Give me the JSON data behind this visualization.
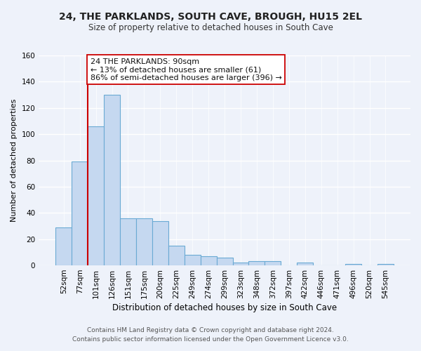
{
  "title": "24, THE PARKLANDS, SOUTH CAVE, BROUGH, HU15 2EL",
  "subtitle": "Size of property relative to detached houses in South Cave",
  "xlabel": "Distribution of detached houses by size in South Cave",
  "ylabel": "Number of detached properties",
  "bar_labels": [
    "52sqm",
    "77sqm",
    "101sqm",
    "126sqm",
    "151sqm",
    "175sqm",
    "200sqm",
    "225sqm",
    "249sqm",
    "274sqm",
    "299sqm",
    "323sqm",
    "348sqm",
    "372sqm",
    "397sqm",
    "422sqm",
    "446sqm",
    "471sqm",
    "496sqm",
    "520sqm",
    "545sqm"
  ],
  "bar_values": [
    29,
    79,
    106,
    130,
    36,
    36,
    34,
    15,
    8,
    7,
    6,
    2,
    3,
    3,
    0,
    2,
    0,
    0,
    1,
    0,
    1
  ],
  "bar_color": "#c5d8f0",
  "bar_edge_color": "#6aaad4",
  "marker_color": "#cc0000",
  "ylim": [
    0,
    160
  ],
  "yticks": [
    0,
    20,
    40,
    60,
    80,
    100,
    120,
    140,
    160
  ],
  "annotation_title": "24 THE PARKLANDS: 90sqm",
  "annotation_line2": "← 13% of detached houses are smaller (61)",
  "annotation_line3": "86% of semi-detached houses are larger (396) →",
  "annotation_box_color": "#ffffff",
  "annotation_box_edge": "#cc0000",
  "footer_line1": "Contains HM Land Registry data © Crown copyright and database right 2024.",
  "footer_line2": "Contains public sector information licensed under the Open Government Licence v3.0.",
  "background_color": "#eef2fa",
  "grid_color": "#ffffff",
  "title_fontsize": 10,
  "subtitle_fontsize": 8.5,
  "ylabel_fontsize": 8,
  "xlabel_fontsize": 8.5,
  "tick_fontsize": 7.5,
  "footer_fontsize": 6.5,
  "annot_fontsize": 8
}
